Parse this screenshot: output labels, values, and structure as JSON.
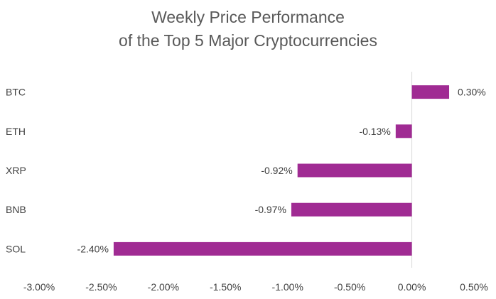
{
  "chart_data": {
    "type": "bar",
    "orientation": "horizontal",
    "title": [
      "Weekly Price Performance",
      "of the Top 5 Major Cryptocurrencies"
    ],
    "categories": [
      "BTC",
      "ETH",
      "XRP",
      "BNB",
      "SOL"
    ],
    "values": [
      0.3,
      -0.13,
      -0.92,
      -0.97,
      -2.4
    ],
    "data_labels": [
      "0.30%",
      "-0.13%",
      "-0.92%",
      "-0.97%",
      "-2.40%"
    ],
    "xlim": [
      -3.0,
      0.5
    ],
    "x_ticks": [
      -3.0,
      -2.5,
      -2.0,
      -1.5,
      -1.0,
      -0.5,
      0.0,
      0.5
    ],
    "x_tick_labels": [
      "-3.00%",
      "-2.50%",
      "-2.00%",
      "-1.50%",
      "-1.00%",
      "-0.50%",
      "0.00%",
      "0.50%"
    ],
    "xlabel": "",
    "ylabel": "",
    "grid": false,
    "legend": "none",
    "bar_color": "#A02B93",
    "axis_color": "#D9D9D9"
  }
}
